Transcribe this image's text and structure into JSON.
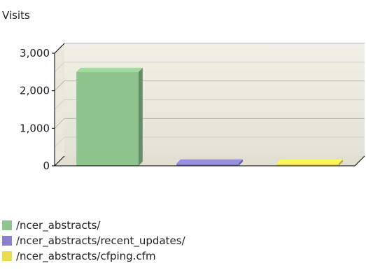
{
  "chart_data": {
    "type": "bar",
    "title": "",
    "xlabel": "",
    "ylabel": "Visits",
    "ylim": [
      0,
      3000
    ],
    "yticks": [
      0,
      1000,
      2000,
      3000
    ],
    "ytick_labels": [
      "0",
      "1,000",
      "2,000",
      "3,000"
    ],
    "grid": true,
    "legend_position": "bottom-left",
    "categories": [
      "/ncer_abstracts/",
      "/ncer_abstracts/recent_updates/",
      "/ncer_abstracts/cfping.cfm"
    ],
    "values": [
      2500,
      60,
      55
    ],
    "colors": [
      "#8fc48e",
      "#8880cc",
      "#ecdc50"
    ]
  }
}
